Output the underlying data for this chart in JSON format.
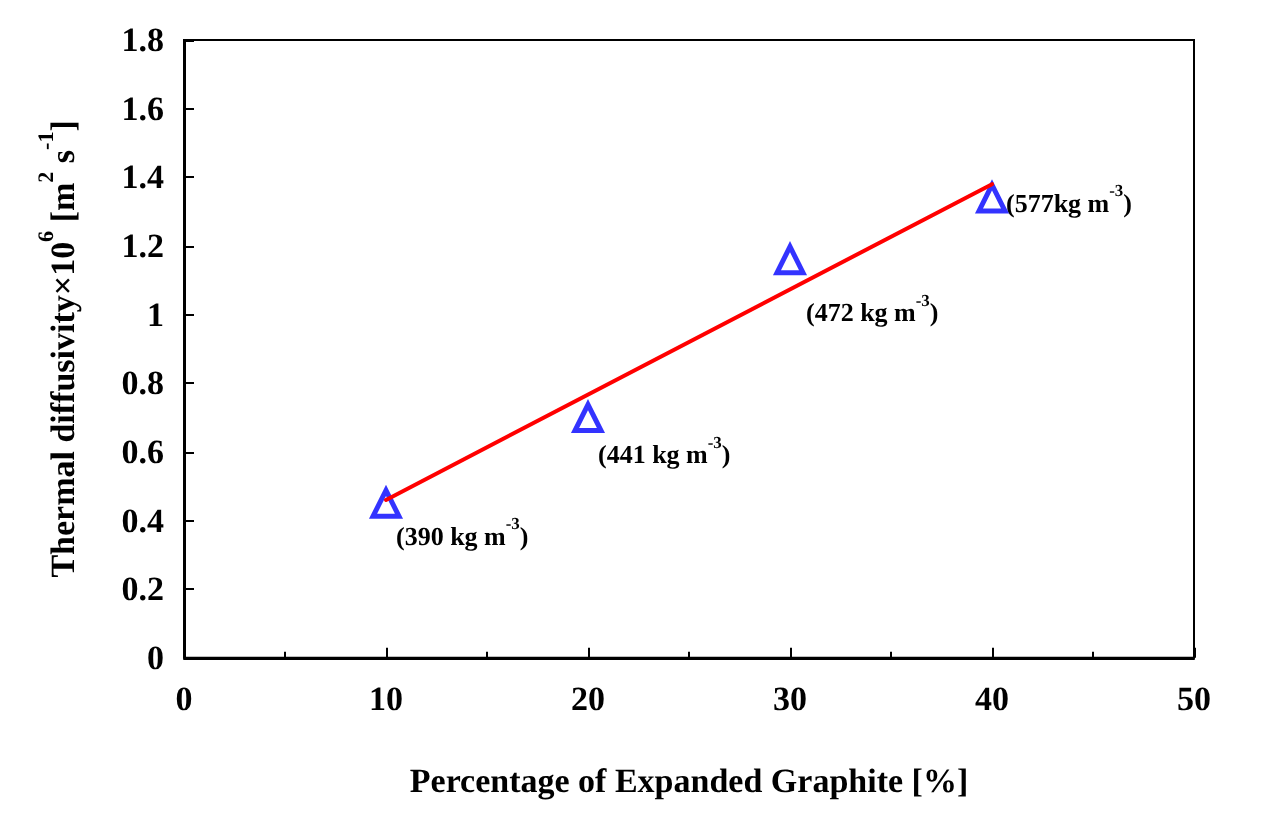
{
  "chart_data": {
    "type": "scatter",
    "xlabel": "Percentage of Expanded Graphite [%]",
    "ylabel": "Thermal diffusivity×10$^{6}$ [m$^{2}$ s$^{-1}$]",
    "xlim": [
      0,
      50
    ],
    "xticks": [
      0,
      10,
      20,
      30,
      40,
      50
    ],
    "ylim": [
      0,
      1.8
    ],
    "yticks": [
      0,
      0.2,
      0.4,
      0.6,
      0.8,
      1,
      1.2,
      1.4,
      1.6,
      1.8
    ],
    "grid": false,
    "series": [
      {
        "color": "#0000ff",
        "marker": "triangle",
        "x": [
          10,
          20,
          30,
          40
        ],
        "values": [
          0.45,
          0.7,
          1.16,
          1.34
        ]
      },
      {
        "type": "line",
        "color": "#ff0000",
        "marker": "none",
        "line_style": "solid",
        "x": [
          10,
          40
        ],
        "values": [
          0.46,
          1.38
        ]
      }
    ],
    "annotations": [
      {
        "text": "(390 kg m$^{-3}$)",
        "x": 10,
        "y": 0.45
      },
      {
        "text": "(441 kg m$^{-3}$)",
        "x": 20,
        "y": 0.7
      },
      {
        "text": "(472 kg m$^{-3}$)",
        "x": 30,
        "y": 1.16
      },
      {
        "text": "(577kg m$^{-3}$)",
        "x": 40,
        "y": 1.34
      }
    ]
  }
}
